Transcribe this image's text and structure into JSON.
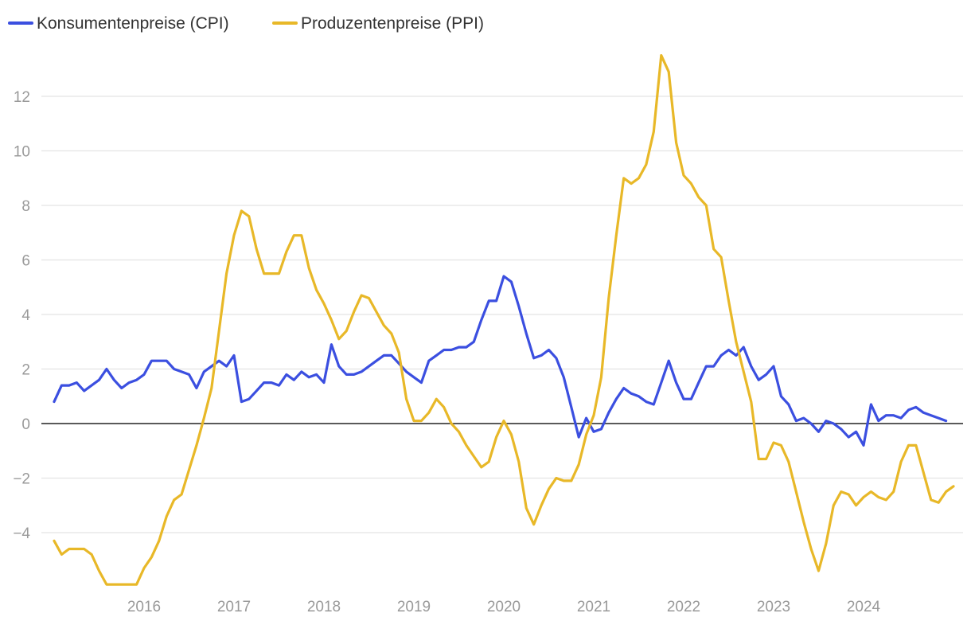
{
  "chart_data": {
    "type": "line",
    "title": "",
    "xlabel": "",
    "ylabel": "",
    "ylim": [
      -6,
      13.9
    ],
    "xlim": [
      2015.0,
      2025.0
    ],
    "grid": true,
    "legend_position": "top-left",
    "y_ticks": [
      {
        "value": 12,
        "label": "12"
      },
      {
        "value": 10,
        "label": "10"
      },
      {
        "value": 8,
        "label": "8"
      },
      {
        "value": 6,
        "label": "6"
      },
      {
        "value": 4,
        "label": "4"
      },
      {
        "value": 2,
        "label": "2"
      },
      {
        "value": 0,
        "label": "0"
      },
      {
        "value": -2,
        "label": "−2"
      },
      {
        "value": -4,
        "label": "−4"
      }
    ],
    "x_ticks": [
      {
        "value": 2016,
        "label": "2016"
      },
      {
        "value": 2017,
        "label": "2017"
      },
      {
        "value": 2018,
        "label": "2018"
      },
      {
        "value": 2019,
        "label": "2019"
      },
      {
        "value": 2020,
        "label": "2020"
      },
      {
        "value": 2021,
        "label": "2021"
      },
      {
        "value": 2022,
        "label": "2022"
      },
      {
        "value": 2023,
        "label": "2023"
      },
      {
        "value": 2024,
        "label": "2024"
      }
    ],
    "x_start": 2015.0,
    "x_step_months": 1,
    "series": [
      {
        "name": "Konsumentenpreise (CPI)",
        "color": "#3b4fe0",
        "values": [
          0.8,
          1.4,
          1.4,
          1.5,
          1.2,
          1.4,
          1.6,
          2.0,
          1.6,
          1.3,
          1.5,
          1.6,
          1.8,
          2.3,
          2.3,
          2.3,
          2.0,
          1.9,
          1.8,
          1.3,
          1.9,
          2.1,
          2.3,
          2.1,
          2.5,
          0.8,
          0.9,
          1.2,
          1.5,
          1.5,
          1.4,
          1.8,
          1.6,
          1.9,
          1.7,
          1.8,
          1.5,
          2.9,
          2.1,
          1.8,
          1.8,
          1.9,
          2.1,
          2.3,
          2.5,
          2.5,
          2.2,
          1.9,
          1.7,
          1.5,
          2.3,
          2.5,
          2.7,
          2.7,
          2.8,
          2.8,
          3.0,
          3.8,
          4.5,
          4.5,
          5.4,
          5.2,
          4.3,
          3.3,
          2.4,
          2.5,
          2.7,
          2.4,
          1.7,
          0.6,
          -0.5,
          0.2,
          -0.3,
          -0.2,
          0.4,
          0.9,
          1.3,
          1.1,
          1.0,
          0.8,
          0.7,
          1.5,
          2.3,
          1.5,
          0.9,
          0.9,
          1.5,
          2.1,
          2.1,
          2.5,
          2.7,
          2.5,
          2.8,
          2.1,
          1.6,
          1.8,
          2.1,
          1.0,
          0.7,
          0.1,
          0.2,
          0.0,
          -0.3,
          0.1,
          0.0,
          -0.2,
          -0.5,
          -0.3,
          -0.8,
          0.7,
          0.1,
          0.3,
          0.3,
          0.2,
          0.5,
          0.6,
          0.4,
          0.3,
          0.2,
          0.1
        ]
      },
      {
        "name": "Produzentenpreise (PPI)",
        "color": "#e8b828",
        "values": [
          -4.3,
          -4.8,
          -4.6,
          -4.6,
          -4.6,
          -4.8,
          -5.4,
          -5.9,
          -5.9,
          -5.9,
          -5.9,
          -5.9,
          -5.3,
          -4.9,
          -4.3,
          -3.4,
          -2.8,
          -2.6,
          -1.7,
          -0.8,
          0.2,
          1.3,
          3.4,
          5.5,
          6.9,
          7.8,
          7.6,
          6.4,
          5.5,
          5.5,
          5.5,
          6.3,
          6.9,
          6.9,
          5.7,
          4.9,
          4.4,
          3.8,
          3.1,
          3.4,
          4.1,
          4.7,
          4.6,
          4.1,
          3.6,
          3.3,
          2.6,
          0.9,
          0.1,
          0.1,
          0.4,
          0.9,
          0.6,
          0.0,
          -0.3,
          -0.8,
          -1.2,
          -1.6,
          -1.4,
          -0.5,
          0.1,
          -0.4,
          -1.4,
          -3.1,
          -3.7,
          -3.0,
          -2.4,
          -2.0,
          -2.1,
          -2.1,
          -1.5,
          -0.4,
          0.3,
          1.7,
          4.6,
          6.9,
          9.0,
          8.8,
          9.0,
          9.5,
          10.7,
          13.5,
          12.9,
          10.3,
          9.1,
          8.8,
          8.3,
          8.0,
          6.4,
          6.1,
          4.5,
          3.0,
          1.9,
          0.8,
          -1.3,
          -1.3,
          -0.7,
          -0.8,
          -1.4,
          -2.5,
          -3.6,
          -4.6,
          -5.4,
          -4.4,
          -3.0,
          -2.5,
          -2.6,
          -3.0,
          -2.7,
          -2.5,
          -2.7,
          -2.8,
          -2.5,
          -1.4,
          -0.8,
          -0.8,
          -1.8,
          -2.8,
          -2.9,
          -2.5,
          -2.3
        ]
      }
    ]
  }
}
